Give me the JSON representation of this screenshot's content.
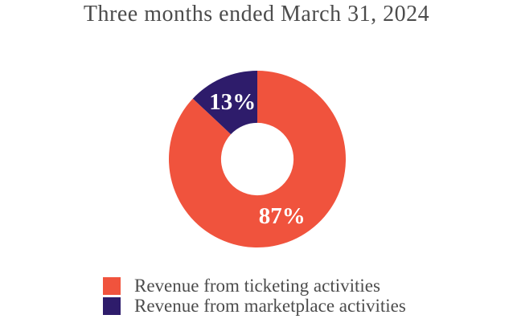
{
  "page": {
    "background": "#FFFFFF"
  },
  "chart_data": {
    "type": "pie",
    "subtype": "donut",
    "title": "Three months ended March 31, 2024",
    "title_color": "#4C4C4C",
    "legend_text_color": "#4C4C4C",
    "value_label_color": "#FFFFFF",
    "background_color": "#FFFFFF",
    "start_angle_deg": 0,
    "direction": "clockwise",
    "inner_radius_ratio": 0.41,
    "legend_position": "bottom-left",
    "grid": false,
    "slices": [
      {
        "label": "Revenue from ticketing activities",
        "value": 87,
        "value_label": "87%",
        "color": "#F0533D"
      },
      {
        "label": "Revenue from marketplace activities",
        "value": 13,
        "value_label": "13%",
        "color": "#2E1C6B"
      }
    ]
  }
}
